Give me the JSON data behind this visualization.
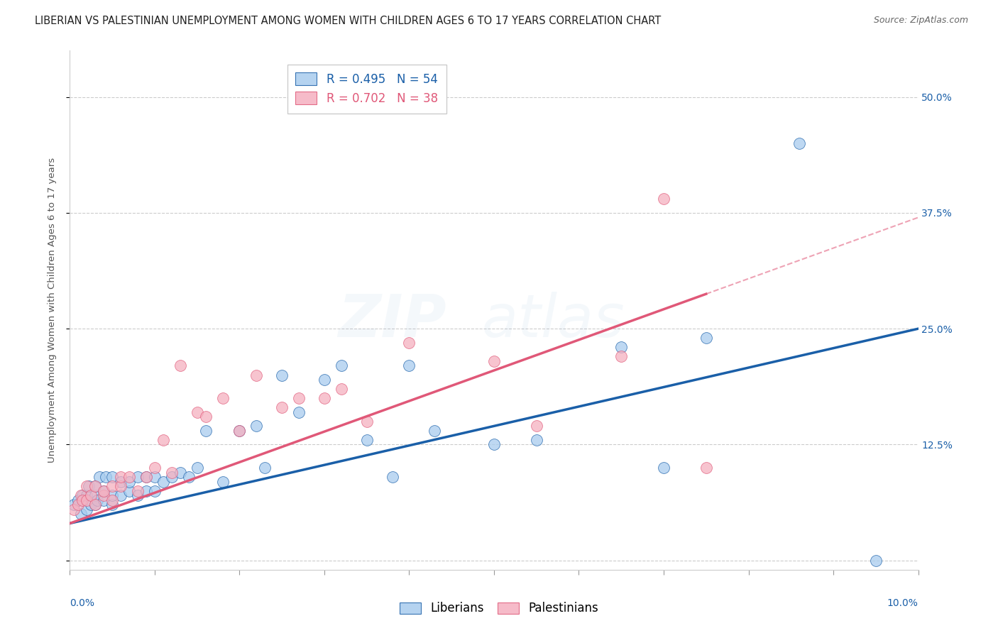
{
  "title": "LIBERIAN VS PALESTINIAN UNEMPLOYMENT AMONG WOMEN WITH CHILDREN AGES 6 TO 17 YEARS CORRELATION CHART",
  "source": "Source: ZipAtlas.com",
  "ylabel": "Unemployment Among Women with Children Ages 6 to 17 years",
  "xlim": [
    0.0,
    0.1
  ],
  "ylim": [
    -0.01,
    0.55
  ],
  "yticks": [
    0.0,
    0.125,
    0.25,
    0.375,
    0.5
  ],
  "ytick_labels": [
    "",
    "12.5%",
    "25.0%",
    "37.5%",
    "50.0%"
  ],
  "liberian_R": 0.495,
  "liberian_N": 54,
  "palestinian_R": 0.702,
  "palestinian_N": 38,
  "liberian_color": "#a8ccee",
  "liberian_line_color": "#1a5fa8",
  "palestinian_color": "#f5b0c0",
  "palestinian_line_color": "#e05878",
  "background_color": "#ffffff",
  "grid_color": "#cccccc",
  "lib_x": [
    0.0005,
    0.001,
    0.0013,
    0.0015,
    0.002,
    0.002,
    0.0022,
    0.0025,
    0.003,
    0.003,
    0.003,
    0.0032,
    0.0035,
    0.004,
    0.004,
    0.0042,
    0.005,
    0.005,
    0.005,
    0.006,
    0.006,
    0.007,
    0.007,
    0.008,
    0.008,
    0.009,
    0.009,
    0.01,
    0.01,
    0.011,
    0.012,
    0.013,
    0.014,
    0.015,
    0.016,
    0.018,
    0.02,
    0.022,
    0.023,
    0.025,
    0.027,
    0.03,
    0.032,
    0.035,
    0.038,
    0.04,
    0.043,
    0.05,
    0.055,
    0.065,
    0.07,
    0.075,
    0.086,
    0.095
  ],
  "lib_y": [
    0.06,
    0.065,
    0.05,
    0.07,
    0.055,
    0.07,
    0.08,
    0.06,
    0.06,
    0.07,
    0.08,
    0.065,
    0.09,
    0.065,
    0.075,
    0.09,
    0.06,
    0.07,
    0.09,
    0.07,
    0.085,
    0.075,
    0.085,
    0.07,
    0.09,
    0.075,
    0.09,
    0.075,
    0.09,
    0.085,
    0.09,
    0.095,
    0.09,
    0.1,
    0.14,
    0.085,
    0.14,
    0.145,
    0.1,
    0.2,
    0.16,
    0.195,
    0.21,
    0.13,
    0.09,
    0.21,
    0.14,
    0.125,
    0.13,
    0.23,
    0.1,
    0.24,
    0.45,
    0.0
  ],
  "pal_x": [
    0.0005,
    0.001,
    0.0013,
    0.0015,
    0.002,
    0.002,
    0.0025,
    0.003,
    0.003,
    0.004,
    0.004,
    0.005,
    0.005,
    0.006,
    0.006,
    0.007,
    0.008,
    0.009,
    0.01,
    0.011,
    0.012,
    0.013,
    0.015,
    0.016,
    0.018,
    0.02,
    0.022,
    0.025,
    0.027,
    0.03,
    0.032,
    0.035,
    0.04,
    0.05,
    0.055,
    0.065,
    0.07,
    0.075
  ],
  "pal_y": [
    0.055,
    0.06,
    0.07,
    0.065,
    0.065,
    0.08,
    0.07,
    0.06,
    0.08,
    0.07,
    0.075,
    0.065,
    0.08,
    0.08,
    0.09,
    0.09,
    0.075,
    0.09,
    0.1,
    0.13,
    0.095,
    0.21,
    0.16,
    0.155,
    0.175,
    0.14,
    0.2,
    0.165,
    0.175,
    0.175,
    0.185,
    0.15,
    0.235,
    0.215,
    0.145,
    0.22,
    0.39,
    0.1
  ],
  "title_fontsize": 10.5,
  "tick_fontsize": 10,
  "legend_fontsize": 12
}
